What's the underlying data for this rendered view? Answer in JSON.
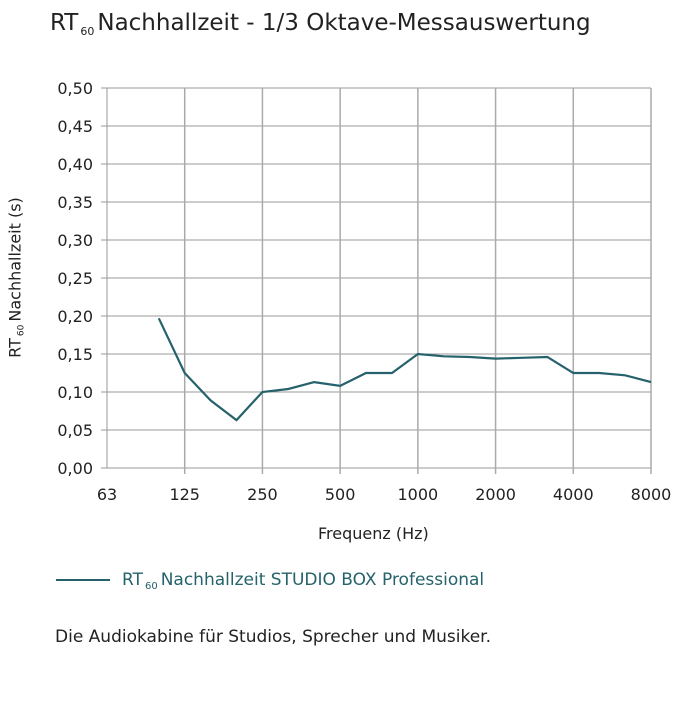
{
  "chart_data": {
    "type": "line",
    "title": {
      "prefix": "RT",
      "sub": "60",
      "rest": "Nachhallzeit  - 1/3 Oktave-Messauswertung"
    },
    "ylabel": {
      "prefix": "RT",
      "sub": "60",
      "rest": "Nachhallzeit (s)"
    },
    "xlabel": "Frequenz (Hz)",
    "x_scale": "log2",
    "x_ticks": [
      63,
      125,
      250,
      500,
      1000,
      2000,
      4000,
      8000
    ],
    "x_tick_labels": [
      "63",
      "125",
      "250",
      "500",
      "1000",
      "2000",
      "4000",
      "8000"
    ],
    "y_ticks": [
      0,
      0.05,
      0.1,
      0.15,
      0.2,
      0.25,
      0.3,
      0.35,
      0.4,
      0.45,
      0.5
    ],
    "y_tick_labels": [
      "0,00",
      "0,05",
      "0,10",
      "0,15",
      "0,20",
      "0,25",
      "0,30",
      "0,35",
      "0,40",
      "0,45",
      "0,50"
    ],
    "ylim": [
      0,
      0.5
    ],
    "grid": true,
    "series": [
      {
        "name": {
          "prefix": "RT",
          "sub": "60",
          "rest": "Nachhallzeit STUDIO BOX Professional"
        },
        "color": "#25626b",
        "x": [
          100,
          125,
          160,
          200,
          250,
          315,
          400,
          500,
          630,
          800,
          1000,
          1250,
          1600,
          2000,
          2500,
          3150,
          4000,
          5000,
          6300,
          8000
        ],
        "values": [
          0.197,
          0.125,
          0.089,
          0.063,
          0.1,
          0.104,
          0.113,
          0.108,
          0.125,
          0.125,
          0.15,
          0.147,
          0.146,
          0.144,
          0.145,
          0.146,
          0.125,
          0.125,
          0.122,
          0.113
        ]
      }
    ]
  },
  "caption": "Die Audiokabine für Studios, Sprecher und Musiker."
}
